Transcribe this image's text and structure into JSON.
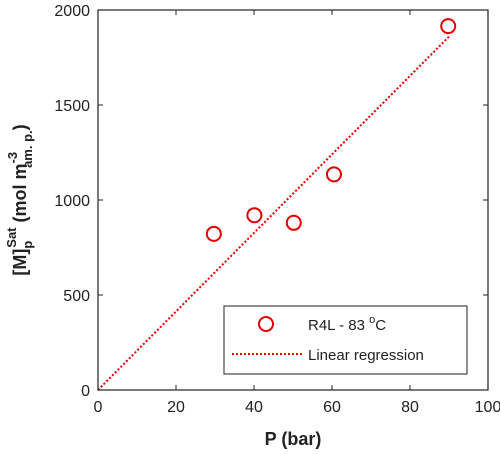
{
  "chart_data": {
    "type": "scatter",
    "xlabel": "P (bar)",
    "ylabel": {
      "base": "[M]",
      "sub": "p",
      "sup": "Sat",
      "unit_open": " (mol m",
      "unit_sup": "-3",
      "unit_sub": "am. p.",
      "unit_close": ")"
    },
    "xlim": [
      0,
      100
    ],
    "ylim": [
      0,
      2000
    ],
    "xticks": [
      0,
      20,
      40,
      60,
      80,
      100
    ],
    "yticks": [
      0,
      500,
      1000,
      1500,
      2000
    ],
    "grid": false,
    "legend_position": "bottom-right",
    "colors": {
      "series": "#e00000",
      "axis": "#222222"
    },
    "series": [
      {
        "name": "R4L - 83 °C",
        "legend_label": {
          "prefix": "R4L - 83 ",
          "sup": "o",
          "suffix": "C"
        },
        "type": "scatter",
        "marker": "open-circle",
        "x": [
          29.7,
          40.1,
          50.2,
          60.5,
          89.8
        ],
        "y": [
          822,
          920,
          880,
          1135,
          1915
        ]
      },
      {
        "name": "Linear regression",
        "legend_label": {
          "prefix": "Linear regression",
          "sup": "",
          "suffix": ""
        },
        "type": "line",
        "style": "dotted",
        "x": [
          0,
          90
        ],
        "y": [
          0,
          1860
        ]
      }
    ]
  }
}
